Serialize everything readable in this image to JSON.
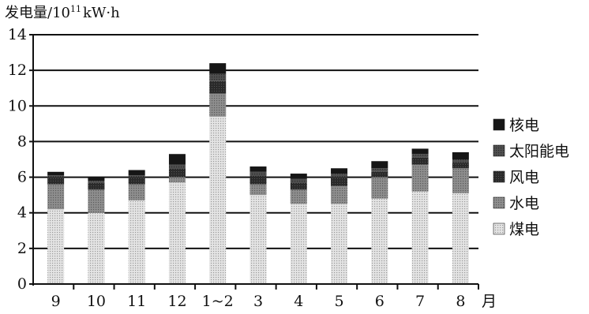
{
  "chart_data": {
    "type": "bar",
    "stacked": true,
    "ylabel_main": "发电量/10",
    "ylabel_sup": "11",
    "ylabel_unit": "kW·h",
    "xlabel": "月",
    "ylim": [
      0,
      14
    ],
    "yticks": [
      0,
      2,
      4,
      6,
      8,
      10,
      12,
      14
    ],
    "grid": true,
    "legend_position": "right",
    "categories": [
      "9",
      "10",
      "11",
      "12",
      "1~2",
      "3",
      "4",
      "5",
      "6",
      "7",
      "8"
    ],
    "series": [
      {
        "name": "煤电",
        "color": "#d2d2d2",
        "values": [
          4.2,
          4.0,
          4.7,
          5.7,
          9.4,
          5.0,
          4.5,
          4.5,
          4.8,
          5.2,
          5.1
        ]
      },
      {
        "name": "水电",
        "color": "#8a8a8a",
        "values": [
          1.4,
          1.3,
          0.9,
          0.3,
          1.3,
          0.6,
          0.8,
          1.0,
          1.2,
          1.5,
          1.4
        ]
      },
      {
        "name": "风电",
        "color": "#222222",
        "values": [
          0.4,
          0.4,
          0.4,
          0.5,
          0.7,
          0.5,
          0.4,
          0.5,
          0.3,
          0.4,
          0.3
        ]
      },
      {
        "name": "太阳能电",
        "color": "#4a4a4a",
        "values": [
          0.1,
          0.1,
          0.1,
          0.2,
          0.4,
          0.2,
          0.2,
          0.2,
          0.2,
          0.2,
          0.2
        ]
      },
      {
        "name": "核电",
        "color": "#1a1a1a",
        "values": [
          0.2,
          0.2,
          0.3,
          0.6,
          0.6,
          0.3,
          0.3,
          0.3,
          0.4,
          0.3,
          0.4
        ]
      }
    ],
    "legend_order": [
      "核电",
      "太阳能电",
      "风电",
      "水电",
      "煤电"
    ]
  }
}
